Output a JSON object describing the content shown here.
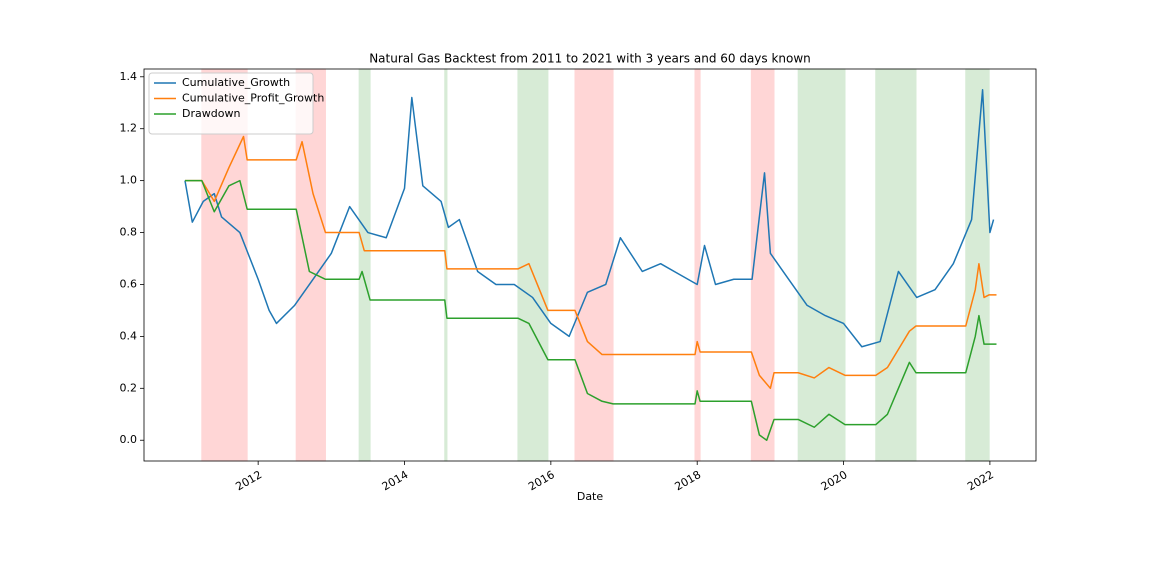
{
  "chart_data": {
    "type": "line",
    "title": "Natural Gas Backtest from 2011 to 2021 with 3 years and 60 days known",
    "xlabel": "Date",
    "xlim": [
      2010.44,
      2022.63
    ],
    "xticks": [
      2012,
      2014,
      2016,
      2018,
      2020,
      2022
    ],
    "ylim": [
      -0.08,
      1.43
    ],
    "yticks": [
      {
        "value": 0,
        "label": "0.0"
      },
      0.2,
      0.4,
      0.6,
      0.8,
      {
        "value": 1,
        "label": "1.0"
      },
      1.2,
      1.4
    ],
    "legend": "upper left",
    "spans": [
      {
        "start": 2011.23,
        "end": 2011.85,
        "color": "#ffd6d6"
      },
      {
        "start": 2012.52,
        "end": 2012.92,
        "color": "#ffd6d6"
      },
      {
        "start": 2013.38,
        "end": 2013.53,
        "color": "#d7ebd6"
      },
      {
        "start": 2014.55,
        "end": 2014.58,
        "color": "#d7ebd6"
      },
      {
        "start": 2015.55,
        "end": 2015.96,
        "color": "#d7ebd6"
      },
      {
        "start": 2016.33,
        "end": 2016.85,
        "color": "#ffd6d6"
      },
      {
        "start": 2017.97,
        "end": 2018.04,
        "color": "#ffd6d6"
      },
      {
        "start": 2018.74,
        "end": 2019.05,
        "color": "#ffd6d6"
      },
      {
        "start": 2019.38,
        "end": 2020.02,
        "color": "#d7ebd6"
      },
      {
        "start": 2020.44,
        "end": 2020.99,
        "color": "#d7ebd6"
      },
      {
        "start": 2021.67,
        "end": 2021.99,
        "color": "#d7ebd6"
      }
    ],
    "series": [
      {
        "name": "Cumulative_Growth",
        "color": "#1f77b4",
        "x": [
          2011.0,
          2011.1,
          2011.25,
          2011.4,
          2011.5,
          2011.75,
          2012.0,
          2012.15,
          2012.25,
          2012.5,
          2012.75,
          2013.0,
          2013.25,
          2013.5,
          2013.75,
          2014.0,
          2014.1,
          2014.25,
          2014.5,
          2014.6,
          2014.75,
          2015.0,
          2015.25,
          2015.5,
          2015.75,
          2016.0,
          2016.25,
          2016.5,
          2016.75,
          2016.95,
          2017.25,
          2017.5,
          2017.75,
          2018.0,
          2018.1,
          2018.25,
          2018.5,
          2018.75,
          2018.92,
          2019.0,
          2019.25,
          2019.5,
          2019.75,
          2020.0,
          2020.25,
          2020.5,
          2020.75,
          2021.0,
          2021.25,
          2021.5,
          2021.75,
          2021.9,
          2022.0,
          2022.05
        ],
        "values": [
          1.0,
          0.84,
          0.92,
          0.95,
          0.86,
          0.8,
          0.62,
          0.5,
          0.45,
          0.52,
          0.62,
          0.72,
          0.9,
          0.8,
          0.78,
          0.97,
          1.32,
          0.98,
          0.92,
          0.82,
          0.85,
          0.65,
          0.6,
          0.6,
          0.55,
          0.45,
          0.4,
          0.57,
          0.6,
          0.78,
          0.65,
          0.68,
          0.64,
          0.6,
          0.75,
          0.6,
          0.62,
          0.62,
          1.03,
          0.72,
          0.62,
          0.52,
          0.48,
          0.45,
          0.36,
          0.38,
          0.65,
          0.55,
          0.58,
          0.68,
          0.85,
          1.35,
          0.8,
          0.85
        ]
      },
      {
        "name": "Cumulative_Profit_Growth",
        "color": "#ff7f0e",
        "x": [
          2011.0,
          2011.23,
          2011.4,
          2011.6,
          2011.8,
          2011.85,
          2012.52,
          2012.6,
          2012.75,
          2012.92,
          2013.38,
          2013.45,
          2013.53,
          2014.55,
          2014.58,
          2015.55,
          2015.7,
          2015.96,
          2016.33,
          2016.5,
          2016.7,
          2016.85,
          2017.97,
          2018.0,
          2018.04,
          2018.74,
          2018.85,
          2019.0,
          2019.05,
          2019.38,
          2019.6,
          2019.8,
          2020.02,
          2020.44,
          2020.6,
          2020.75,
          2020.9,
          2020.99,
          2021.67,
          2021.8,
          2021.85,
          2021.92,
          2021.99,
          2022.09
        ],
        "values": [
          1.0,
          1.0,
          0.92,
          1.05,
          1.17,
          1.08,
          1.08,
          1.15,
          0.95,
          0.8,
          0.8,
          0.73,
          0.73,
          0.73,
          0.66,
          0.66,
          0.68,
          0.5,
          0.5,
          0.38,
          0.33,
          0.33,
          0.33,
          0.38,
          0.34,
          0.34,
          0.25,
          0.2,
          0.26,
          0.26,
          0.24,
          0.28,
          0.25,
          0.25,
          0.28,
          0.35,
          0.42,
          0.44,
          0.44,
          0.58,
          0.68,
          0.55,
          0.56,
          0.56
        ]
      },
      {
        "name": "Drawdown",
        "color": "#2ca02c",
        "x": [
          2011.0,
          2011.23,
          2011.4,
          2011.6,
          2011.75,
          2011.85,
          2012.52,
          2012.7,
          2012.92,
          2013.38,
          2013.42,
          2013.53,
          2014.55,
          2014.58,
          2015.55,
          2015.7,
          2015.96,
          2016.33,
          2016.5,
          2016.7,
          2016.85,
          2017.97,
          2018.0,
          2018.04,
          2018.74,
          2018.85,
          2018.95,
          2019.05,
          2019.38,
          2019.6,
          2019.8,
          2020.02,
          2020.44,
          2020.6,
          2020.75,
          2020.9,
          2020.99,
          2021.67,
          2021.8,
          2021.85,
          2021.92,
          2021.99,
          2022.09
        ],
        "values": [
          1.0,
          1.0,
          0.88,
          0.98,
          1.0,
          0.89,
          0.89,
          0.65,
          0.62,
          0.62,
          0.65,
          0.54,
          0.54,
          0.47,
          0.47,
          0.45,
          0.31,
          0.31,
          0.18,
          0.15,
          0.14,
          0.14,
          0.19,
          0.15,
          0.15,
          0.02,
          0.0,
          0.08,
          0.08,
          0.05,
          0.1,
          0.06,
          0.06,
          0.1,
          0.2,
          0.3,
          0.26,
          0.26,
          0.4,
          0.48,
          0.37,
          0.37,
          0.37
        ]
      }
    ]
  }
}
